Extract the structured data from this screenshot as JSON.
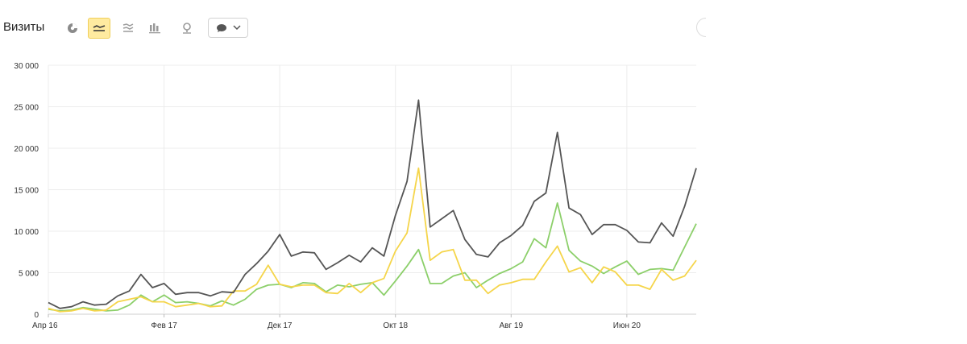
{
  "toolbar": {
    "title": "Визиты",
    "buttons": [
      {
        "icon": "pie-chart-icon",
        "active": false
      },
      {
        "icon": "line-chart-icon",
        "active": true
      },
      {
        "icon": "area-chart-icon",
        "active": false
      },
      {
        "icon": "bar-chart-icon",
        "active": false
      },
      {
        "icon": "map-pin-icon",
        "active": false
      }
    ],
    "dropdown_icon": "speech-bubble-icon",
    "active_color": "#ffeba0"
  },
  "chart_data": {
    "type": "line",
    "title": "",
    "xlabel": "",
    "ylabel": "",
    "ylim": [
      0,
      30000
    ],
    "yticks": [
      0,
      5000,
      10000,
      15000,
      20000,
      25000,
      30000
    ],
    "ytick_labels": [
      "0",
      "5 000",
      "10 000",
      "15 000",
      "20 000",
      "25 000",
      "30 000"
    ],
    "x_start": "2016-04",
    "x_ticks": [
      {
        "index": 0,
        "label": "Апр 16"
      },
      {
        "index": 10,
        "label": "Фев 17"
      },
      {
        "index": 20,
        "label": "Дек 17"
      },
      {
        "index": 30,
        "label": "Окт 18"
      },
      {
        "index": 40,
        "label": "Авг 19"
      },
      {
        "index": 50,
        "label": "Июн 20"
      }
    ],
    "grid": true,
    "legend": "none",
    "series": [
      {
        "color": "#555555",
        "values": [
          1400,
          700,
          900,
          1500,
          1100,
          1200,
          2200,
          2800,
          4800,
          3200,
          3700,
          2400,
          2600,
          2600,
          2200,
          2700,
          2600,
          4800,
          6100,
          7600,
          9600,
          7000,
          7500,
          7400,
          5400,
          6200,
          7100,
          6300,
          8000,
          7000,
          11900,
          16000,
          25800,
          10500,
          11500,
          12500,
          9000,
          7200,
          6900,
          8600,
          9500,
          10700,
          13600,
          14600,
          21900,
          12800,
          12000,
          9600,
          10800,
          10800,
          10100,
          8700,
          8600,
          11000,
          9400,
          13000,
          17600
        ]
      },
      {
        "color": "#8ccf6a",
        "values": [
          600,
          400,
          500,
          800,
          600,
          400,
          500,
          1100,
          2300,
          1500,
          2300,
          1400,
          1500,
          1300,
          1000,
          1600,
          1100,
          1800,
          3000,
          3500,
          3600,
          3200,
          3800,
          3700,
          2700,
          3500,
          3300,
          3600,
          3800,
          2300,
          4000,
          5800,
          7800,
          3700,
          3700,
          4600,
          5000,
          3200,
          4100,
          4900,
          5500,
          6300,
          9100,
          8000,
          13400,
          7700,
          6400,
          5800,
          4900,
          5700,
          6400,
          4800,
          5400,
          5500,
          5300,
          8100,
          10900
        ]
      },
      {
        "color": "#f5d54a",
        "values": [
          700,
          300,
          400,
          700,
          400,
          500,
          1500,
          1800,
          2100,
          1500,
          1500,
          900,
          1100,
          1300,
          900,
          1000,
          2800,
          2800,
          3600,
          5900,
          3600,
          3300,
          3500,
          3500,
          2600,
          2500,
          3700,
          2600,
          3800,
          4300,
          7600,
          9800,
          17600,
          6500,
          7500,
          7800,
          4100,
          4100,
          2500,
          3500,
          3800,
          4200,
          4200,
          6300,
          8200,
          5100,
          5600,
          3800,
          5700,
          5100,
          3500,
          3500,
          3000,
          5400,
          4100,
          4600,
          6500
        ]
      }
    ]
  }
}
